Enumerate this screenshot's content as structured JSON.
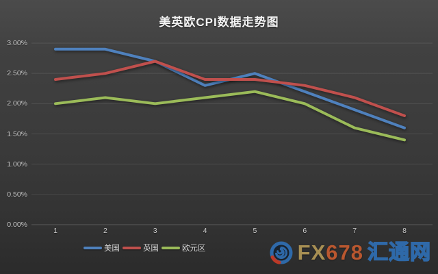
{
  "title": "美英欧CPI数据走势图",
  "chart_data": {
    "type": "line",
    "title": "美英欧CPI数据走势图",
    "categories": [
      "1",
      "2",
      "3",
      "4",
      "5",
      "6",
      "7",
      "8"
    ],
    "series": [
      {
        "name": "美国",
        "color": "#4f81bd",
        "values": [
          2.9,
          2.9,
          2.7,
          2.3,
          2.5,
          2.2,
          1.9,
          1.6
        ]
      },
      {
        "name": "英国",
        "color": "#c0504d",
        "values": [
          2.4,
          2.5,
          2.7,
          2.4,
          2.4,
          2.3,
          2.1,
          1.8
        ]
      },
      {
        "name": "欧元区",
        "color": "#9bbb59",
        "values": [
          2.0,
          2.1,
          2.0,
          2.1,
          2.2,
          2.0,
          1.6,
          1.4
        ]
      }
    ],
    "xlabel": "",
    "ylabel": "",
    "ylim": [
      0,
      3.0
    ],
    "ytick_step": 0.5,
    "ytick_labels": [
      "0.00%",
      "0.50%",
      "1.00%",
      "1.50%",
      "2.00%",
      "2.50%",
      "3.00%"
    ],
    "grid": true,
    "legend_position": "bottom"
  },
  "watermark": {
    "brand_fx": "FX",
    "brand_num": "678",
    "brand_site": "汇通网",
    "fx_color": "#ac9355",
    "num_color": "#bf5930",
    "site_color": "#2f6cae"
  },
  "colors": {
    "background": "#3a3a3a",
    "gridline": "rgba(255,255,255,0.10)",
    "axis_line": "rgba(255,255,255,0.20)",
    "tick_text": "#cccccc",
    "title_text": "#f4f4f4"
  }
}
